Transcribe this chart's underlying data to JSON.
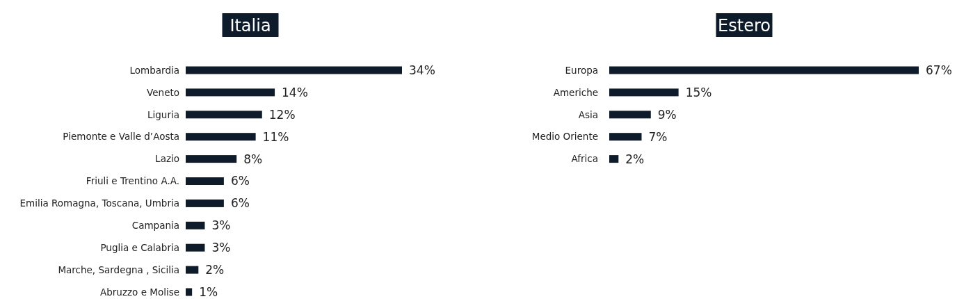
{
  "chart_data": [
    {
      "type": "bar",
      "orientation": "horizontal",
      "title": "Italia",
      "categories": [
        "Lombardia",
        "Veneto",
        "Liguria",
        "Piemonte e Valle d’Aosta",
        "Lazio",
        "Friuli e Trentino A.A.",
        "Emilia Romagna, Toscana, Umbria",
        "Campania",
        "Puglia e Calabria",
        "Marche, Sardegna , Sicilia",
        "Abruzzo e Molise"
      ],
      "values": [
        34,
        14,
        12,
        11,
        8,
        6,
        6,
        3,
        3,
        2,
        1
      ],
      "value_labels": [
        "34%",
        "14%",
        "12%",
        "11%",
        "8%",
        "6%",
        "6%",
        "3%",
        "3%",
        "2%",
        "1%"
      ],
      "color": "#0d1b2a"
    },
    {
      "type": "bar",
      "orientation": "horizontal",
      "title": "Estero",
      "categories": [
        "Europa",
        "Americhe",
        "Asia",
        "Medio Oriente",
        "Africa"
      ],
      "values": [
        67,
        15,
        9,
        7,
        2
      ],
      "value_labels": [
        "67%",
        "15%",
        "9%",
        "7%",
        "2%"
      ],
      "color": "#0d1b2a"
    }
  ]
}
